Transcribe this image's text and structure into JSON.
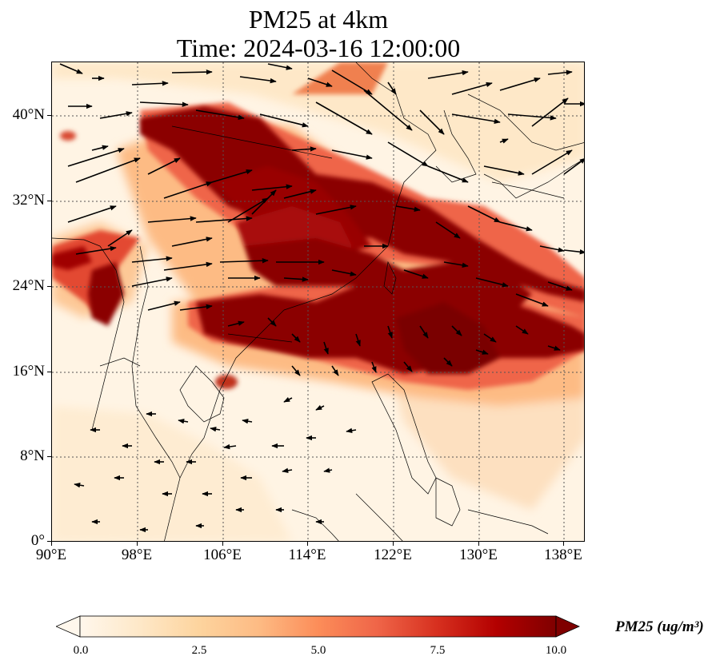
{
  "title": {
    "line1": "PM25 at 4km",
    "line2": "Time: 2024-03-16 12:00:00"
  },
  "map": {
    "lat_labels": [
      "0°",
      "8°N",
      "16°N",
      "24°N",
      "32°N",
      "40°N"
    ],
    "lon_labels": [
      "90°E",
      "98°E",
      "106°E",
      "114°E",
      "122°E",
      "130°E",
      "138°E"
    ],
    "lon_range": [
      90,
      140
    ],
    "lat_range": [
      0,
      45
    ],
    "gridlines": "dotted",
    "wind_vectors": "black arrows",
    "land_outline": "thin black coastlines and borders"
  },
  "colorbar": {
    "title": "PM25 (ug/m³)",
    "tick_labels": [
      "0.0",
      "2.5",
      "5.0",
      "7.5",
      "10.0"
    ],
    "range": [
      0,
      10
    ],
    "colormap": "OrRd",
    "colors": [
      "#fff7ec",
      "#fee8c8",
      "#fdd49e",
      "#fdbb84",
      "#fc8d59",
      "#ef6548",
      "#d7301f",
      "#b30000",
      "#7f0000"
    ],
    "extend": "both"
  }
}
